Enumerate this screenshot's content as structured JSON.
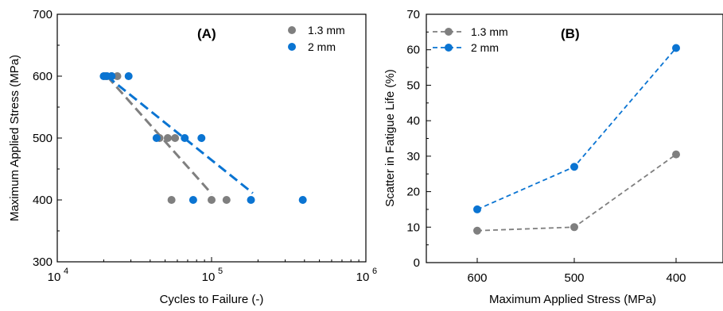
{
  "chart_data": [
    {
      "type": "scatter",
      "panel_label": "(A)",
      "xlabel": "Cycles to Failure (-)",
      "ylabel": "Maximum Applied Stress (MPa)",
      "xscale": "log",
      "xlim": [
        10000,
        1000000
      ],
      "ylim": [
        300,
        700
      ],
      "xticks": [
        {
          "value": 10000,
          "base": "10",
          "exp": "4"
        },
        {
          "value": 100000,
          "base": "10",
          "exp": "5"
        },
        {
          "value": 1000000,
          "base": "10",
          "exp": "6"
        }
      ],
      "yticks": [
        300,
        400,
        500,
        600,
        700
      ],
      "legend_position": "top-right",
      "series": [
        {
          "name": "1.3 mm",
          "color": "#7f7f7f",
          "points": [
            [
              20500,
              600
            ],
            [
              22500,
              600
            ],
            [
              24500,
              600
            ],
            [
              46000,
              500
            ],
            [
              52000,
              500
            ],
            [
              58000,
              500
            ],
            [
              55000,
              400
            ],
            [
              100000,
              400
            ],
            [
              125000,
              400
            ]
          ],
          "trend": [
            [
              21000,
              600
            ],
            [
              100000,
              410
            ]
          ]
        },
        {
          "name": "2 mm",
          "color": "#0a74d2",
          "points": [
            [
              20000,
              600
            ],
            [
              21000,
              600
            ],
            [
              22500,
              600
            ],
            [
              29000,
              600
            ],
            [
              44000,
              500
            ],
            [
              67000,
              500
            ],
            [
              86000,
              500
            ],
            [
              76000,
              400
            ],
            [
              180000,
              400
            ],
            [
              390000,
              400
            ]
          ],
          "trend": [
            [
              21000,
              600
            ],
            [
              185000,
              411
            ]
          ]
        }
      ]
    },
    {
      "type": "line",
      "panel_label": "(B)",
      "xlabel": "Maximum Applied Stress (MPa)",
      "ylabel": "Scatter in Fatigue Life (%)",
      "categories": [
        "600",
        "500",
        "400"
      ],
      "ylim": [
        0,
        70
      ],
      "yticks": [
        0,
        10,
        20,
        30,
        40,
        50,
        60,
        70
      ],
      "legend_position": "top-left",
      "series": [
        {
          "name": "1.3 mm",
          "color": "#7f7f7f",
          "values": [
            9,
            10,
            30.5
          ]
        },
        {
          "name": "2 mm",
          "color": "#0a74d2",
          "values": [
            15,
            27,
            60.5
          ]
        }
      ]
    }
  ]
}
